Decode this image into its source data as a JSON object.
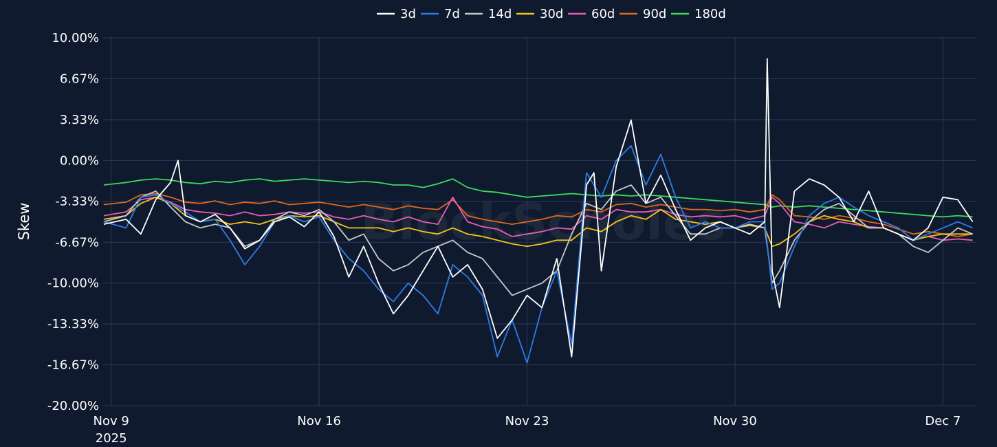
{
  "chart_data": {
    "type": "line",
    "ylabel": "Skew",
    "xlabel": "",
    "ylim": [
      -20,
      10
    ],
    "yticks": [
      10,
      6.67,
      3.33,
      0,
      -3.33,
      -6.67,
      -10,
      -13.33,
      -16.67,
      -20
    ],
    "ytick_labels": [
      "10.00%",
      "6.67%",
      "3.33%",
      "0.00%",
      "-3.33%",
      "-6.67%",
      "-10.00%",
      "-13.33%",
      "-16.67%",
      "-20.00%"
    ],
    "xlim": [
      "2025-11-08T17:30",
      "2025-12-08T03:00"
    ],
    "xticks": [
      "2025-11-09",
      "2025-11-16",
      "2025-11-23",
      "2025-11-30",
      "2025-12-07"
    ],
    "xtick_labels": [
      "Nov 9",
      "Nov 16",
      "Nov 23",
      "Nov 30",
      "Dec 7"
    ],
    "xtick_sublabel": "2025",
    "grid": true,
    "legend_position": "top-center",
    "watermark": "BlockScholes",
    "series": [
      {
        "name": "3d",
        "color": "#ffffff",
        "x": [
          "2025-11-08T18:00",
          "2025-11-09T12:00",
          "2025-11-10",
          "2025-11-10T12:00",
          "2025-11-11",
          "2025-11-11T06:00",
          "2025-11-11T12:00",
          "2025-11-12",
          "2025-11-12T12:00",
          "2025-11-13",
          "2025-11-13T12:00",
          "2025-11-14",
          "2025-11-14T12:00",
          "2025-11-15",
          "2025-11-15T12:00",
          "2025-11-16",
          "2025-11-16T12:00",
          "2025-11-17",
          "2025-11-17T12:00",
          "2025-11-18",
          "2025-11-18T12:00",
          "2025-11-19",
          "2025-11-19T12:00",
          "2025-11-20",
          "2025-11-20T12:00",
          "2025-11-21",
          "2025-11-21T12:00",
          "2025-11-22",
          "2025-11-22T12:00",
          "2025-11-23",
          "2025-11-23T12:00",
          "2025-11-24",
          "2025-11-24T12:00",
          "2025-11-25",
          "2025-11-25T06:00",
          "2025-11-25T12:00",
          "2025-11-26",
          "2025-11-26T12:00",
          "2025-11-27",
          "2025-11-27T12:00",
          "2025-11-28",
          "2025-11-28T12:00",
          "2025-11-29",
          "2025-11-29T12:00",
          "2025-11-30",
          "2025-11-30T12:00",
          "2025-12-01",
          "2025-12-01T02:00",
          "2025-12-01T06:00",
          "2025-12-01T12:00",
          "2025-12-02",
          "2025-12-02T12:00",
          "2025-12-03",
          "2025-12-03T12:00",
          "2025-12-04",
          "2025-12-04T12:00",
          "2025-12-05",
          "2025-12-05T12:00",
          "2025-12-06",
          "2025-12-06T12:00",
          "2025-12-07",
          "2025-12-07T12:00",
          "2025-12-08"
        ],
        "y": [
          -5.2,
          -4.8,
          -6.0,
          -3.2,
          -1.8,
          0.0,
          -4.5,
          -5.0,
          -4.4,
          -5.5,
          -7.2,
          -6.5,
          -5.0,
          -4.6,
          -5.4,
          -4.2,
          -6.2,
          -9.5,
          -7.0,
          -10.0,
          -12.5,
          -11.0,
          -9.0,
          -7.0,
          -9.5,
          -8.5,
          -10.5,
          -14.5,
          -13.0,
          -11.0,
          -12.0,
          -8.0,
          -16.0,
          -2.0,
          -1.0,
          -9.0,
          -0.5,
          3.3,
          -3.5,
          -1.2,
          -4.0,
          -6.5,
          -5.5,
          -5.0,
          -5.5,
          -6.0,
          -5.0,
          8.3,
          -9.0,
          -12.0,
          -2.5,
          -1.5,
          -2.0,
          -3.0,
          -5.0,
          -2.5,
          -5.5,
          -6.0,
          -6.5,
          -5.5,
          -3.0,
          -3.2,
          -5.0
        ]
      },
      {
        "name": "7d",
        "color": "#2d7de6",
        "x": [
          "2025-11-08T18:00",
          "2025-11-09T12:00",
          "2025-11-10",
          "2025-11-10T12:00",
          "2025-11-11",
          "2025-11-11T12:00",
          "2025-11-12",
          "2025-11-12T12:00",
          "2025-11-13",
          "2025-11-13T12:00",
          "2025-11-14",
          "2025-11-14T12:00",
          "2025-11-15",
          "2025-11-15T12:00",
          "2025-11-16",
          "2025-11-16T12:00",
          "2025-11-17",
          "2025-11-17T12:00",
          "2025-11-18",
          "2025-11-18T12:00",
          "2025-11-19",
          "2025-11-19T12:00",
          "2025-11-20",
          "2025-11-20T12:00",
          "2025-11-21",
          "2025-11-21T12:00",
          "2025-11-22",
          "2025-11-22T12:00",
          "2025-11-23",
          "2025-11-23T12:00",
          "2025-11-24",
          "2025-11-24T12:00",
          "2025-11-25",
          "2025-11-25T12:00",
          "2025-11-26",
          "2025-11-26T12:00",
          "2025-11-27",
          "2025-11-27T12:00",
          "2025-11-28",
          "2025-11-28T12:00",
          "2025-11-29",
          "2025-11-29T12:00",
          "2025-11-30",
          "2025-11-30T12:00",
          "2025-12-01",
          "2025-12-01T06:00",
          "2025-12-01T12:00",
          "2025-12-02",
          "2025-12-02T12:00",
          "2025-12-03",
          "2025-12-03T12:00",
          "2025-12-04",
          "2025-12-04T12:00",
          "2025-12-05",
          "2025-12-05T12:00",
          "2025-12-06",
          "2025-12-06T12:00",
          "2025-12-07",
          "2025-12-07T12:00",
          "2025-12-08"
        ],
        "y": [
          -5.0,
          -5.5,
          -3.0,
          -2.8,
          -3.5,
          -4.2,
          -5.0,
          -4.8,
          -6.5,
          -8.5,
          -7.0,
          -5.0,
          -4.5,
          -5.0,
          -4.6,
          -6.5,
          -8.0,
          -9.0,
          -10.5,
          -11.5,
          -10.0,
          -11.0,
          -12.5,
          -8.5,
          -9.5,
          -11.0,
          -16.0,
          -13.0,
          -16.5,
          -12.0,
          -9.0,
          -15.0,
          -1.0,
          -3.0,
          0.0,
          1.2,
          -2.0,
          0.5,
          -3.0,
          -5.5,
          -5.0,
          -5.5,
          -5.5,
          -5.0,
          -5.0,
          -10.5,
          -10.0,
          -7.0,
          -4.5,
          -3.5,
          -3.0,
          -3.8,
          -4.5,
          -5.0,
          -5.5,
          -6.5,
          -6.0,
          -5.5,
          -5.0,
          -5.5
        ]
      },
      {
        "name": "14d",
        "color": "#c8c8cc",
        "x": [
          "2025-11-08T18:00",
          "2025-11-09T12:00",
          "2025-11-10",
          "2025-11-10T12:00",
          "2025-11-11",
          "2025-11-11T12:00",
          "2025-11-12",
          "2025-11-12T12:00",
          "2025-11-13",
          "2025-11-13T12:00",
          "2025-11-14",
          "2025-11-14T12:00",
          "2025-11-15",
          "2025-11-15T12:00",
          "2025-11-16",
          "2025-11-16T12:00",
          "2025-11-17",
          "2025-11-17T12:00",
          "2025-11-18",
          "2025-11-18T12:00",
          "2025-11-19",
          "2025-11-19T12:00",
          "2025-11-20",
          "2025-11-20T12:00",
          "2025-11-21",
          "2025-11-21T12:00",
          "2025-11-22",
          "2025-11-22T12:00",
          "2025-11-23",
          "2025-11-23T12:00",
          "2025-11-24",
          "2025-11-24T12:00",
          "2025-11-25",
          "2025-11-25T12:00",
          "2025-11-26",
          "2025-11-26T12:00",
          "2025-11-27",
          "2025-11-27T12:00",
          "2025-11-28",
          "2025-11-28T12:00",
          "2025-11-29",
          "2025-11-29T12:00",
          "2025-11-30",
          "2025-11-30T12:00",
          "2025-12-01",
          "2025-12-01T06:00",
          "2025-12-01T12:00",
          "2025-12-02",
          "2025-12-02T12:00",
          "2025-12-03",
          "2025-12-03T12:00",
          "2025-12-04",
          "2025-12-04T12:00",
          "2025-12-05",
          "2025-12-05T12:00",
          "2025-12-06",
          "2025-12-06T12:00",
          "2025-12-07",
          "2025-12-07T12:00",
          "2025-12-08"
        ],
        "y": [
          -5.0,
          -4.5,
          -3.0,
          -2.5,
          -3.8,
          -5.0,
          -5.5,
          -5.2,
          -5.5,
          -7.0,
          -6.5,
          -4.8,
          -4.2,
          -4.5,
          -4.0,
          -5.0,
          -6.5,
          -6.0,
          -8.0,
          -9.0,
          -8.5,
          -7.5,
          -7.0,
          -6.5,
          -7.5,
          -8.0,
          -9.5,
          -11.0,
          -10.5,
          -10.0,
          -9.0,
          -6.0,
          -3.5,
          -4.0,
          -2.5,
          -2.0,
          -3.5,
          -3.0,
          -4.5,
          -6.0,
          -6.0,
          -5.5,
          -5.5,
          -5.2,
          -5.5,
          -10.0,
          -9.0,
          -6.5,
          -5.0,
          -4.0,
          -3.5,
          -4.5,
          -5.5,
          -5.5,
          -6.0,
          -7.0,
          -7.5,
          -6.5,
          -5.5,
          -6.0
        ]
      },
      {
        "name": "30d",
        "color": "#f5c518",
        "x": [
          "2025-11-08T18:00",
          "2025-11-09T12:00",
          "2025-11-10",
          "2025-11-10T12:00",
          "2025-11-11",
          "2025-11-11T12:00",
          "2025-11-12",
          "2025-11-12T12:00",
          "2025-11-13",
          "2025-11-13T12:00",
          "2025-11-14",
          "2025-11-14T12:00",
          "2025-11-15",
          "2025-11-15T12:00",
          "2025-11-16",
          "2025-11-16T12:00",
          "2025-11-17",
          "2025-11-17T12:00",
          "2025-11-18",
          "2025-11-18T12:00",
          "2025-11-19",
          "2025-11-19T12:00",
          "2025-11-20",
          "2025-11-20T12:00",
          "2025-11-21",
          "2025-11-21T12:00",
          "2025-11-22",
          "2025-11-22T12:00",
          "2025-11-23",
          "2025-11-23T12:00",
          "2025-11-24",
          "2025-11-24T12:00",
          "2025-11-25",
          "2025-11-25T12:00",
          "2025-11-26",
          "2025-11-26T12:00",
          "2025-11-27",
          "2025-11-27T12:00",
          "2025-11-28",
          "2025-11-28T12:00",
          "2025-11-29",
          "2025-11-29T12:00",
          "2025-11-30",
          "2025-11-30T12:00",
          "2025-12-01",
          "2025-12-01T06:00",
          "2025-12-01T12:00",
          "2025-12-02",
          "2025-12-02T12:00",
          "2025-12-03",
          "2025-12-03T12:00",
          "2025-12-04",
          "2025-12-04T12:00",
          "2025-12-05",
          "2025-12-05T12:00",
          "2025-12-06",
          "2025-12-06T12:00",
          "2025-12-07",
          "2025-12-07T12:00",
          "2025-12-08"
        ],
        "y": [
          -4.8,
          -4.5,
          -3.5,
          -3.0,
          -3.5,
          -4.5,
          -5.0,
          -4.8,
          -5.2,
          -5.0,
          -5.2,
          -4.8,
          -4.5,
          -4.6,
          -4.5,
          -5.0,
          -5.5,
          -5.5,
          -5.5,
          -5.8,
          -5.5,
          -5.8,
          -6.0,
          -5.5,
          -6.0,
          -6.2,
          -6.5,
          -6.8,
          -7.0,
          -6.8,
          -6.5,
          -6.5,
          -5.5,
          -5.8,
          -5.0,
          -4.5,
          -4.8,
          -4.0,
          -4.8,
          -5.0,
          -5.2,
          -5.0,
          -5.5,
          -5.3,
          -5.5,
          -7.0,
          -6.8,
          -6.0,
          -5.0,
          -4.5,
          -4.8,
          -5.0,
          -5.5,
          -5.5,
          -6.0,
          -6.5,
          -6.2,
          -6.0,
          -6.0,
          -6.0
        ]
      },
      {
        "name": "60d",
        "color": "#e85cb5",
        "x": [
          "2025-11-08T18:00",
          "2025-11-09T12:00",
          "2025-11-10",
          "2025-11-10T12:00",
          "2025-11-11",
          "2025-11-11T12:00",
          "2025-11-12",
          "2025-11-12T12:00",
          "2025-11-13",
          "2025-11-13T12:00",
          "2025-11-14",
          "2025-11-14T12:00",
          "2025-11-15",
          "2025-11-15T12:00",
          "2025-11-16",
          "2025-11-16T12:00",
          "2025-11-17",
          "2025-11-17T12:00",
          "2025-11-18",
          "2025-11-18T12:00",
          "2025-11-19",
          "2025-11-19T12:00",
          "2025-11-20",
          "2025-11-20T12:00",
          "2025-11-21",
          "2025-11-21T12:00",
          "2025-11-22",
          "2025-11-22T12:00",
          "2025-11-23",
          "2025-11-23T12:00",
          "2025-11-24",
          "2025-11-24T12:00",
          "2025-11-25",
          "2025-11-25T12:00",
          "2025-11-26",
          "2025-11-26T12:00",
          "2025-11-27",
          "2025-11-27T12:00",
          "2025-11-28",
          "2025-11-28T12:00",
          "2025-11-29",
          "2025-11-29T12:00",
          "2025-11-30",
          "2025-11-30T12:00",
          "2025-12-01",
          "2025-12-01T06:00",
          "2025-12-01T12:00",
          "2025-12-02",
          "2025-12-02T12:00",
          "2025-12-03",
          "2025-12-03T12:00",
          "2025-12-04",
          "2025-12-04T12:00",
          "2025-12-05",
          "2025-12-05T12:00",
          "2025-12-06",
          "2025-12-06T12:00",
          "2025-12-07",
          "2025-12-07T12:00",
          "2025-12-08"
        ],
        "y": [
          -4.5,
          -4.2,
          -3.2,
          -3.0,
          -3.4,
          -4.0,
          -4.2,
          -4.3,
          -4.5,
          -4.2,
          -4.5,
          -4.4,
          -4.2,
          -4.3,
          -4.2,
          -4.6,
          -4.8,
          -4.5,
          -4.8,
          -5.0,
          -4.6,
          -5.0,
          -5.2,
          -3.0,
          -5.0,
          -5.4,
          -5.6,
          -6.2,
          -6.0,
          -5.8,
          -5.5,
          -5.6,
          -4.5,
          -4.8,
          -4.0,
          -4.2,
          -4.2,
          -4.0,
          -4.4,
          -4.6,
          -4.5,
          -4.6,
          -4.5,
          -4.8,
          -4.5,
          -3.0,
          -3.5,
          -5.0,
          -5.2,
          -5.5,
          -5.0,
          -5.2,
          -5.4,
          -5.5,
          -6.0,
          -6.5,
          -6.2,
          -6.5,
          -6.4,
          -6.5
        ]
      },
      {
        "name": "90d",
        "color": "#e0681a",
        "x": [
          "2025-11-08T18:00",
          "2025-11-09T12:00",
          "2025-11-10",
          "2025-11-10T12:00",
          "2025-11-11",
          "2025-11-11T12:00",
          "2025-11-12",
          "2025-11-12T12:00",
          "2025-11-13",
          "2025-11-13T12:00",
          "2025-11-14",
          "2025-11-14T12:00",
          "2025-11-15",
          "2025-11-15T12:00",
          "2025-11-16",
          "2025-11-16T12:00",
          "2025-11-17",
          "2025-11-17T12:00",
          "2025-11-18",
          "2025-11-18T12:00",
          "2025-11-19",
          "2025-11-19T12:00",
          "2025-11-20",
          "2025-11-20T12:00",
          "2025-11-21",
          "2025-11-21T12:00",
          "2025-11-22",
          "2025-11-22T12:00",
          "2025-11-23",
          "2025-11-23T12:00",
          "2025-11-24",
          "2025-11-24T12:00",
          "2025-11-25",
          "2025-11-25T12:00",
          "2025-11-26",
          "2025-11-26T12:00",
          "2025-11-27",
          "2025-11-27T12:00",
          "2025-11-28",
          "2025-11-28T12:00",
          "2025-11-29",
          "2025-11-29T12:00",
          "2025-11-30",
          "2025-11-30T12:00",
          "2025-12-01",
          "2025-12-01T06:00",
          "2025-12-01T12:00",
          "2025-12-02",
          "2025-12-02T12:00",
          "2025-12-03",
          "2025-12-03T12:00",
          "2025-12-04",
          "2025-12-04T12:00",
          "2025-12-05",
          "2025-12-05T12:00",
          "2025-12-06",
          "2025-12-06T12:00",
          "2025-12-07",
          "2025-12-07T12:00",
          "2025-12-08"
        ],
        "y": [
          -3.6,
          -3.4,
          -2.8,
          -2.7,
          -3.0,
          -3.4,
          -3.5,
          -3.3,
          -3.6,
          -3.4,
          -3.5,
          -3.3,
          -3.6,
          -3.5,
          -3.4,
          -3.6,
          -3.8,
          -3.6,
          -3.8,
          -4.0,
          -3.7,
          -3.9,
          -4.0,
          -3.2,
          -4.5,
          -4.8,
          -5.0,
          -5.2,
          -5.0,
          -4.8,
          -4.5,
          -4.6,
          -4.0,
          -4.2,
          -3.6,
          -3.5,
          -3.8,
          -3.6,
          -3.8,
          -4.0,
          -4.0,
          -4.1,
          -4.0,
          -4.2,
          -4.0,
          -2.8,
          -3.2,
          -4.5,
          -4.6,
          -4.8,
          -4.5,
          -4.7,
          -5.0,
          -5.2,
          -5.6,
          -6.0,
          -5.8,
          -6.0,
          -6.2,
          -6.0
        ]
      },
      {
        "name": "180d",
        "color": "#3cdc5a",
        "x": [
          "2025-11-08T18:00",
          "2025-11-09T12:00",
          "2025-11-10",
          "2025-11-10T12:00",
          "2025-11-11",
          "2025-11-11T12:00",
          "2025-11-12",
          "2025-11-12T12:00",
          "2025-11-13",
          "2025-11-13T12:00",
          "2025-11-14",
          "2025-11-14T12:00",
          "2025-11-15",
          "2025-11-15T12:00",
          "2025-11-16",
          "2025-11-16T12:00",
          "2025-11-17",
          "2025-11-17T12:00",
          "2025-11-18",
          "2025-11-18T12:00",
          "2025-11-19",
          "2025-11-19T12:00",
          "2025-11-20",
          "2025-11-20T12:00",
          "2025-11-21",
          "2025-11-21T12:00",
          "2025-11-22",
          "2025-11-22T12:00",
          "2025-11-23",
          "2025-11-23T12:00",
          "2025-11-24",
          "2025-11-24T12:00",
          "2025-11-25",
          "2025-11-25T12:00",
          "2025-11-26",
          "2025-11-26T12:00",
          "2025-11-27",
          "2025-11-27T12:00",
          "2025-11-28",
          "2025-11-28T12:00",
          "2025-11-29",
          "2025-11-29T12:00",
          "2025-11-30",
          "2025-11-30T12:00",
          "2025-12-01",
          "2025-12-01T06:00",
          "2025-12-01T12:00",
          "2025-12-02",
          "2025-12-02T12:00",
          "2025-12-03",
          "2025-12-03T12:00",
          "2025-12-04",
          "2025-12-04T12:00",
          "2025-12-05",
          "2025-12-05T12:00",
          "2025-12-06",
          "2025-12-06T12:00",
          "2025-12-07",
          "2025-12-07T12:00",
          "2025-12-08"
        ],
        "y": [
          -2.0,
          -1.8,
          -1.6,
          -1.5,
          -1.6,
          -1.8,
          -1.9,
          -1.7,
          -1.8,
          -1.6,
          -1.5,
          -1.7,
          -1.6,
          -1.5,
          -1.6,
          -1.7,
          -1.8,
          -1.7,
          -1.8,
          -2.0,
          -2.0,
          -2.2,
          -1.9,
          -1.5,
          -2.2,
          -2.5,
          -2.6,
          -2.8,
          -3.0,
          -2.9,
          -2.8,
          -2.7,
          -2.8,
          -2.9,
          -2.8,
          -2.9,
          -2.8,
          -2.9,
          -3.0,
          -3.1,
          -3.2,
          -3.3,
          -3.4,
          -3.5,
          -3.6,
          -3.8,
          -3.7,
          -3.8,
          -3.7,
          -3.8,
          -3.9,
          -4.0,
          -4.1,
          -4.2,
          -4.3,
          -4.4,
          -4.5,
          -4.6,
          -4.5,
          -4.6
        ]
      }
    ]
  }
}
